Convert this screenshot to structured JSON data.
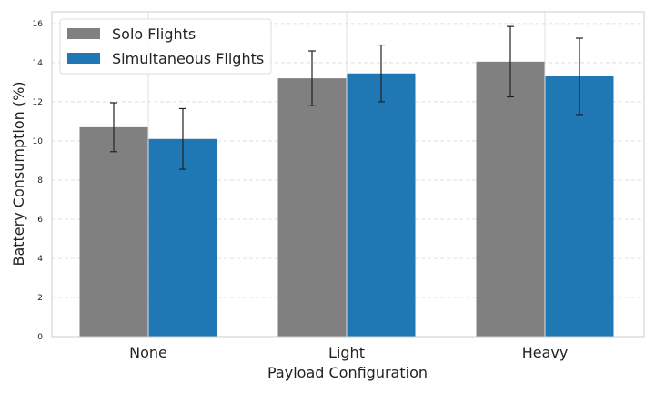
{
  "chart_data": {
    "type": "bar",
    "title": "",
    "xlabel": "Payload Configuration",
    "ylabel": "Battery Consumption (%)",
    "categories": [
      "None",
      "Light",
      "Heavy"
    ],
    "ylim": [
      0,
      16.6
    ],
    "yticks": [
      0,
      2,
      4,
      6,
      8,
      10,
      12,
      14,
      16
    ],
    "grid": true,
    "legend_position": "top-left",
    "series": [
      {
        "name": "Solo Flights",
        "color": "#808080",
        "values": [
          10.7,
          13.2,
          14.05
        ],
        "errors": [
          1.25,
          1.4,
          1.8
        ]
      },
      {
        "name": "Simultaneous Flights",
        "color": "#1f77b4",
        "values": [
          10.1,
          13.45,
          13.3
        ],
        "errors": [
          1.55,
          1.45,
          1.95
        ]
      }
    ]
  }
}
